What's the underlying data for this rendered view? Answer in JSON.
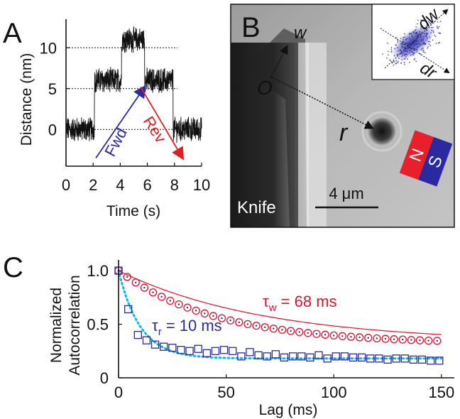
{
  "panel_labels": {
    "a": "A",
    "b": "B",
    "c": "C"
  },
  "colors": {
    "fwd": "#2a2aa0",
    "rev": "#e02020",
    "tau_w": "#e0102a",
    "tau_r": "#2a2aa0",
    "fit_r": "#18b4e6",
    "magnet_n": "#e8202a",
    "magnet_s": "#2a2aa0"
  },
  "chart_data": [
    {
      "type": "line",
      "xlabel": "Time (s)",
      "ylabel": "Distance (nm)",
      "x_ticks": [
        "0",
        "2",
        "4",
        "6",
        "8",
        "10"
      ],
      "y_ticks": [
        "0",
        "5",
        "10"
      ],
      "xlim": [
        0,
        10
      ],
      "ylim": [
        -4.5,
        13.5
      ],
      "reference_lines": [
        0,
        5,
        10
      ],
      "trace_levels": [
        {
          "start": 0,
          "end": 2.1,
          "mean": 0
        },
        {
          "start": 2.1,
          "end": 4.1,
          "mean": 6
        },
        {
          "start": 4.1,
          "end": 5.8,
          "mean": 11
        },
        {
          "start": 5.8,
          "end": 7.9,
          "mean": 6
        },
        {
          "start": 7.9,
          "end": 10,
          "mean": 0
        }
      ],
      "noise_amplitude_nm": 1.3,
      "annotations": {
        "fwd": "Fwd",
        "rev": "Rev"
      },
      "arrows": [
        {
          "name": "fwd",
          "from": [
            2.2,
            -3.5
          ],
          "to": [
            5.8,
            5.2
          ]
        },
        {
          "name": "rev",
          "from": [
            5.5,
            5.2
          ],
          "to": [
            8.6,
            -3.5
          ]
        }
      ]
    },
    {
      "type": "image",
      "labels": {
        "w": "w",
        "r": "r",
        "o": "O",
        "knife": "Knife",
        "scalebar": "4 μm",
        "n": "N",
        "s": "S",
        "dw": "dw",
        "dr": "dr"
      }
    },
    {
      "type": "scatter",
      "xlabel": "Lag (ms)",
      "ylabel_line1": "Normalized",
      "ylabel_line2": "Autocorrelation",
      "x_ticks": [
        "0",
        "50",
        "100",
        "150"
      ],
      "y_ticks": [
        "0",
        "0.5",
        "1.0"
      ],
      "xlim": [
        0,
        155
      ],
      "ylim": [
        0,
        1.1
      ],
      "series": [
        {
          "name": "w",
          "x": [
            0,
            4,
            8,
            12,
            16,
            20,
            24,
            28,
            32,
            36,
            40,
            44,
            48,
            52,
            56,
            60,
            64,
            68,
            72,
            76,
            80,
            84,
            88,
            92,
            96,
            100,
            104,
            108,
            112,
            116,
            120,
            124,
            128,
            132,
            136,
            140,
            144,
            148
          ],
          "y": [
            1.0,
            0.942,
            0.889,
            0.841,
            0.797,
            0.756,
            0.719,
            0.685,
            0.655,
            0.627,
            0.601,
            0.577,
            0.556,
            0.536,
            0.518,
            0.501,
            0.486,
            0.472,
            0.459,
            0.448,
            0.437,
            0.427,
            0.418,
            0.41,
            0.402,
            0.395,
            0.389,
            0.383,
            0.378,
            0.373,
            0.368,
            0.364,
            0.36,
            0.357,
            0.353,
            0.35,
            0.347,
            0.345
          ]
        },
        {
          "name": "r",
          "x": [
            0,
            4.5,
            9,
            13,
            17,
            21,
            25,
            29,
            33,
            37,
            41,
            45,
            49,
            53,
            57,
            61,
            65,
            69,
            73,
            77,
            81,
            85,
            89,
            93,
            97,
            101,
            105,
            109,
            113,
            117,
            121,
            125,
            129,
            133,
            137,
            141,
            145,
            149
          ],
          "y": [
            1.0,
            0.64,
            0.4,
            0.35,
            0.31,
            0.29,
            0.28,
            0.26,
            0.25,
            0.27,
            0.23,
            0.25,
            0.26,
            0.25,
            0.2,
            0.24,
            0.21,
            0.2,
            0.22,
            0.19,
            0.2,
            0.2,
            0.19,
            0.21,
            0.18,
            0.2,
            0.2,
            0.19,
            0.19,
            0.18,
            0.18,
            0.17,
            0.18,
            0.18,
            0.17,
            0.17,
            0.16,
            0.16
          ]
        }
      ],
      "fits": [
        {
          "name": "tau_w fit",
          "tau_ms": 68,
          "plateau": 0.33
        },
        {
          "name": "tau_r fit",
          "tau_ms": 10,
          "plateau": 0.18
        }
      ],
      "annotations": {
        "tau_w": {
          "symbol": "τ",
          "sub": "w",
          "value": " = 68 ms"
        },
        "tau_r": {
          "symbol": "τ",
          "sub": "r",
          "value": " = 10 ms"
        }
      }
    }
  ]
}
